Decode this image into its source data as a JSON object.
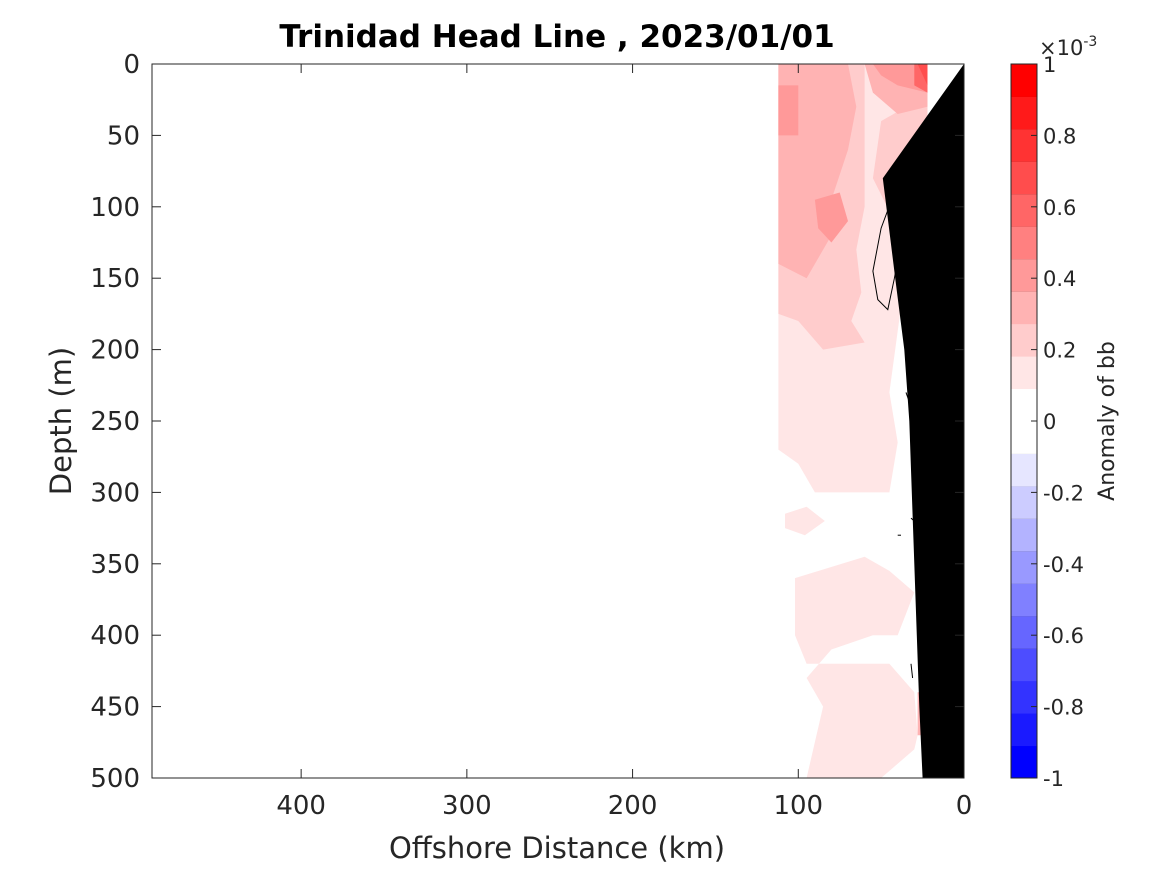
{
  "chart_data": {
    "type": "heatmap",
    "title": "Trinidad Head Line , 2023/01/01",
    "xlabel": "Offshore Distance (km)",
    "ylabel": "Depth (m)",
    "xlim": [
      490,
      0
    ],
    "ylim": [
      0,
      500
    ],
    "x_direction": "reversed",
    "y_direction": "reversed (depth increases downward)",
    "xticks": [
      400,
      300,
      200,
      100,
      0
    ],
    "yticks": [
      0,
      50,
      100,
      150,
      200,
      250,
      300,
      350,
      400,
      450,
      500
    ],
    "colorbar": {
      "label": "Anomaly of bb",
      "exponent": "×10-3",
      "exponent_base": "×10",
      "exponent_power": "-3",
      "range": [
        -1,
        1
      ],
      "levels": [
        -1,
        -0.9,
        -0.8,
        -0.7,
        -0.6,
        -0.5,
        -0.4,
        -0.3,
        -0.2,
        -0.1,
        0,
        0.1,
        0.2,
        0.3,
        0.4,
        0.5,
        0.6,
        0.7,
        0.8,
        0.9,
        1
      ],
      "ticks": [
        -1,
        -0.8,
        -0.6,
        -0.4,
        -0.2,
        0,
        0.2,
        0.4,
        0.6,
        0.8,
        1
      ],
      "tick_labels": [
        "-1",
        "-0.8",
        "-0.6",
        "-0.4",
        "-0.2",
        "0",
        "0.2",
        "0.4",
        "0.6",
        "0.8",
        "1"
      ],
      "colors": [
        "#0000ff",
        "#1a1aff",
        "#3333ff",
        "#4d4dff",
        "#6666ff",
        "#8080ff",
        "#9999ff",
        "#b3b3ff",
        "#ccccff",
        "#e6e6ff",
        "#ffffff",
        "#ffffff",
        "#ffe6e6",
        "#ffcccc",
        "#ffb3b3",
        "#ff9999",
        "#ff8080",
        "#ff6666",
        "#ff4d4d",
        "#ff3333",
        "#ff1a1a",
        "#ff0000"
      ]
    },
    "data_extent_km": [
      0,
      112
    ],
    "regions": [
      {
        "level": 0.15,
        "points": [
          [
            112,
            0
          ],
          [
            22,
            0
          ],
          [
            22,
            170
          ],
          [
            38,
            170
          ],
          [
            45,
            230
          ],
          [
            40,
            265
          ],
          [
            45,
            300
          ],
          [
            90,
            300
          ],
          [
            100,
            280
          ],
          [
            112,
            270
          ]
        ]
      },
      {
        "level": 0.15,
        "points": [
          [
            108,
            315
          ],
          [
            95,
            310
          ],
          [
            84,
            320
          ],
          [
            96,
            330
          ],
          [
            108,
            325
          ]
        ]
      },
      {
        "level": 0.15,
        "points": [
          [
            102,
            360
          ],
          [
            60,
            345
          ],
          [
            45,
            355
          ],
          [
            30,
            370
          ],
          [
            40,
            400
          ],
          [
            55,
            400
          ],
          [
            80,
            410
          ],
          [
            95,
            430
          ],
          [
            85,
            450
          ],
          [
            95,
            500
          ],
          [
            50,
            500
          ],
          [
            30,
            480
          ],
          [
            28,
            470
          ],
          [
            30,
            440
          ],
          [
            45,
            420
          ],
          [
            95,
            420
          ],
          [
            102,
            400
          ]
        ]
      },
      {
        "level": 0.25,
        "points": [
          [
            112,
            0
          ],
          [
            22,
            0
          ],
          [
            22,
            165
          ],
          [
            32,
            160
          ],
          [
            38,
            130
          ],
          [
            42,
            110
          ],
          [
            55,
            80
          ],
          [
            50,
            40
          ],
          [
            35,
            30
          ],
          [
            22,
            30
          ],
          [
            22,
            0
          ]
        ]
      },
      {
        "level": 0.25,
        "points": [
          [
            112,
            0
          ],
          [
            60,
            0
          ],
          [
            60,
            100
          ],
          [
            65,
            130
          ],
          [
            62,
            160
          ],
          [
            68,
            180
          ],
          [
            60,
            195
          ],
          [
            85,
            200
          ],
          [
            100,
            180
          ],
          [
            112,
            175
          ]
        ]
      },
      {
        "level": 0.35,
        "points": [
          [
            112,
            0
          ],
          [
            70,
            0
          ],
          [
            65,
            30
          ],
          [
            70,
            60
          ],
          [
            80,
            95
          ],
          [
            80,
            120
          ],
          [
            95,
            150
          ],
          [
            112,
            140
          ]
        ]
      },
      {
        "level": 0.35,
        "points": [
          [
            60,
            0
          ],
          [
            22,
            0
          ],
          [
            22,
            30
          ],
          [
            40,
            35
          ],
          [
            55,
            20
          ]
        ]
      },
      {
        "level": 0.45,
        "points": [
          [
            112,
            15
          ],
          [
            100,
            15
          ],
          [
            100,
            50
          ],
          [
            112,
            50
          ]
        ]
      },
      {
        "level": 0.45,
        "points": [
          [
            90,
            95
          ],
          [
            75,
            90
          ],
          [
            70,
            110
          ],
          [
            80,
            125
          ],
          [
            88,
            115
          ]
        ]
      },
      {
        "level": 0.45,
        "points": [
          [
            55,
            0
          ],
          [
            22,
            0
          ],
          [
            22,
            20
          ],
          [
            40,
            15
          ],
          [
            50,
            8
          ]
        ]
      },
      {
        "level": 0.55,
        "points": [
          [
            30,
            0
          ],
          [
            22,
            0
          ],
          [
            22,
            20
          ],
          [
            30,
            15
          ]
        ]
      },
      {
        "level": 0.65,
        "points": [
          [
            28,
            0
          ],
          [
            22,
            0
          ],
          [
            22,
            15
          ]
        ]
      },
      {
        "level": 0.35,
        "points": [
          [
            28,
            440
          ],
          [
            25,
            440
          ],
          [
            25,
            470
          ],
          [
            28,
            470
          ]
        ]
      },
      {
        "level": 0.25,
        "points": [
          [
            28,
            360
          ],
          [
            25,
            360
          ],
          [
            25,
            390
          ],
          [
            28,
            390
          ]
        ]
      }
    ],
    "contour_lines": [
      {
        "level": 0,
        "points": [
          [
            22,
            58
          ],
          [
            32,
            60
          ],
          [
            42,
            90
          ],
          [
            50,
            115
          ],
          [
            55,
            145
          ],
          [
            52,
            165
          ],
          [
            46,
            172
          ],
          [
            42,
            150
          ],
          [
            38,
            125
          ],
          [
            34,
            100
          ],
          [
            28,
            75
          ],
          [
            22,
            58
          ]
        ]
      },
      {
        "level": 0,
        "points": [
          [
            35,
            230
          ],
          [
            32,
            240
          ],
          [
            30,
            250
          ]
        ]
      },
      {
        "level": 0,
        "points": [
          [
            32,
            318
          ],
          [
            30,
            320
          ]
        ]
      },
      {
        "level": 0,
        "points": [
          [
            40,
            330
          ],
          [
            38,
            330
          ]
        ]
      },
      {
        "level": 0,
        "points": [
          [
            32,
            420
          ],
          [
            31,
            430
          ]
        ]
      }
    ],
    "bathymetry_polygon": [
      [
        0,
        0
      ],
      [
        0,
        500
      ],
      [
        25,
        500
      ],
      [
        27,
        450
      ],
      [
        30,
        350
      ],
      [
        33,
        250
      ],
      [
        36,
        200
      ],
      [
        41,
        155
      ],
      [
        49,
        80
      ],
      [
        0,
        0
      ]
    ]
  }
}
